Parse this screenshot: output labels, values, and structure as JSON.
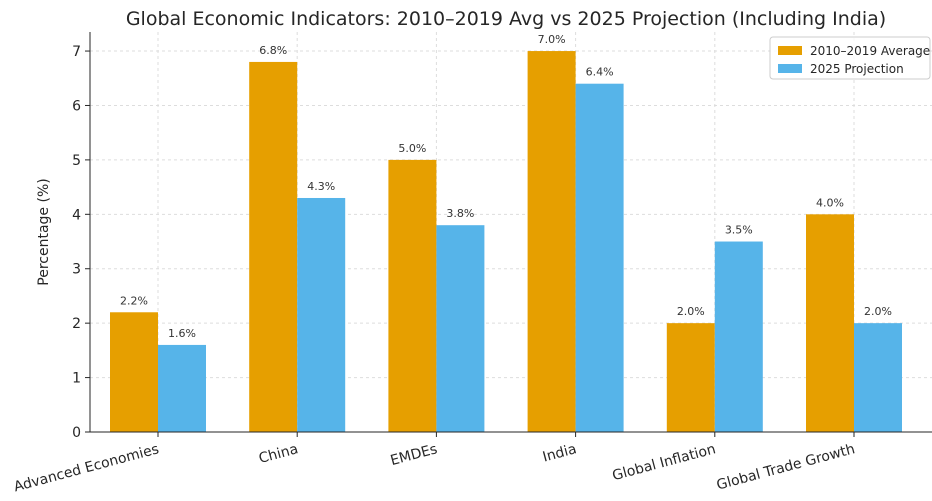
{
  "chart_data": {
    "type": "bar",
    "title": "Global Economic Indicators: 2010–2019 Avg vs 2025 Projection (Including India)",
    "xlabel": "",
    "ylabel": "Percentage (%)",
    "ylim": [
      0,
      7.35
    ],
    "yticks": [
      "0",
      "1",
      "2",
      "3",
      "4",
      "5",
      "6",
      "7"
    ],
    "categories": [
      "Advanced Economies",
      "China",
      "EMDEs",
      "India",
      "Global Inflation",
      "Global Trade Growth"
    ],
    "series": [
      {
        "name": "2010–2019 Average",
        "color": "#E69F00",
        "values": [
          2.2,
          6.8,
          5.0,
          7.0,
          2.0,
          4.0
        ],
        "labels": [
          "2.2%",
          "6.8%",
          "5.0%",
          "7.0%",
          "2.0%",
          "4.0%"
        ]
      },
      {
        "name": "2025 Projection",
        "color": "#56B4E9",
        "values": [
          1.6,
          4.3,
          3.8,
          6.4,
          3.5,
          2.0
        ],
        "labels": [
          "1.6%",
          "4.3%",
          "3.8%",
          "6.4%",
          "3.5%",
          "2.0%"
        ]
      }
    ],
    "grid": true,
    "legend_position": "top-right"
  }
}
